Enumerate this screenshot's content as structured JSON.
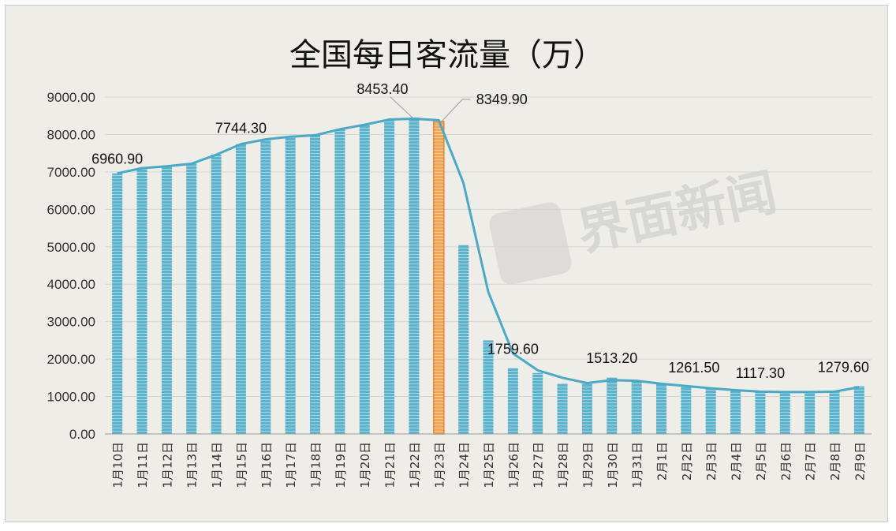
{
  "chart_data": {
    "type": "bar",
    "title": "全国每日客流量（万）",
    "xlabel": "",
    "ylabel": "",
    "ylim": [
      0,
      9000
    ],
    "yticks": [
      "0.00",
      "1000.00",
      "2000.00",
      "3000.00",
      "4000.00",
      "5000.00",
      "6000.00",
      "7000.00",
      "8000.00",
      "9000.00"
    ],
    "categories": [
      "1月10日",
      "1月11日",
      "1月12日",
      "1月13日",
      "1月14日",
      "1月15日",
      "1月16日",
      "1月17日",
      "1月18日",
      "1月19日",
      "1月20日",
      "1月21日",
      "1月22日",
      "1月23日",
      "1月24日",
      "1月25日",
      "1月26日",
      "1月27日",
      "1月28日",
      "1月29日",
      "1月30日",
      "1月31日",
      "2月1日",
      "2月2日",
      "2月3日",
      "2月4日",
      "2月5日",
      "2月6日",
      "2月7日",
      "2月8日",
      "2月9日"
    ],
    "values": [
      6960.9,
      7100,
      7150,
      7220,
      7460,
      7744.3,
      7870,
      7940,
      7980,
      8140,
      8260,
      8400,
      8453.4,
      8349.9,
      5050,
      2500,
      1759.6,
      1630,
      1350,
      1380,
      1513.2,
      1400,
      1330,
      1261.5,
      1220,
      1160,
      1117.3,
      1130,
      1130,
      1140,
      1279.6
    ],
    "line_values": [
      6960.9,
      7100,
      7150,
      7220,
      7460,
      7744.3,
      7870,
      7940,
      7980,
      8140,
      8260,
      8400,
      8420,
      8380,
      6700,
      3800,
      2150,
      1700,
      1500,
      1360,
      1440,
      1420,
      1340,
      1280,
      1220,
      1170,
      1130,
      1120,
      1120,
      1130,
      1250
    ],
    "highlight_index": 13,
    "bar_color": "#5bb3cc",
    "highlight_color": "#f5a55a",
    "line_color": "#4aaac6",
    "grid": true,
    "data_labels": [
      {
        "index": 0,
        "text": "6960.90"
      },
      {
        "index": 5,
        "text": "7744.30"
      },
      {
        "index": 12,
        "text": "8453.40"
      },
      {
        "index": 13,
        "text": "8349.90"
      },
      {
        "index": 16,
        "text": "1759.60"
      },
      {
        "index": 20,
        "text": "1513.20"
      },
      {
        "index": 23,
        "text": "1261.50"
      },
      {
        "index": 26,
        "text": "1117.30"
      },
      {
        "index": 30,
        "text": "1279.60"
      }
    ],
    "watermark": "界面新闻"
  }
}
